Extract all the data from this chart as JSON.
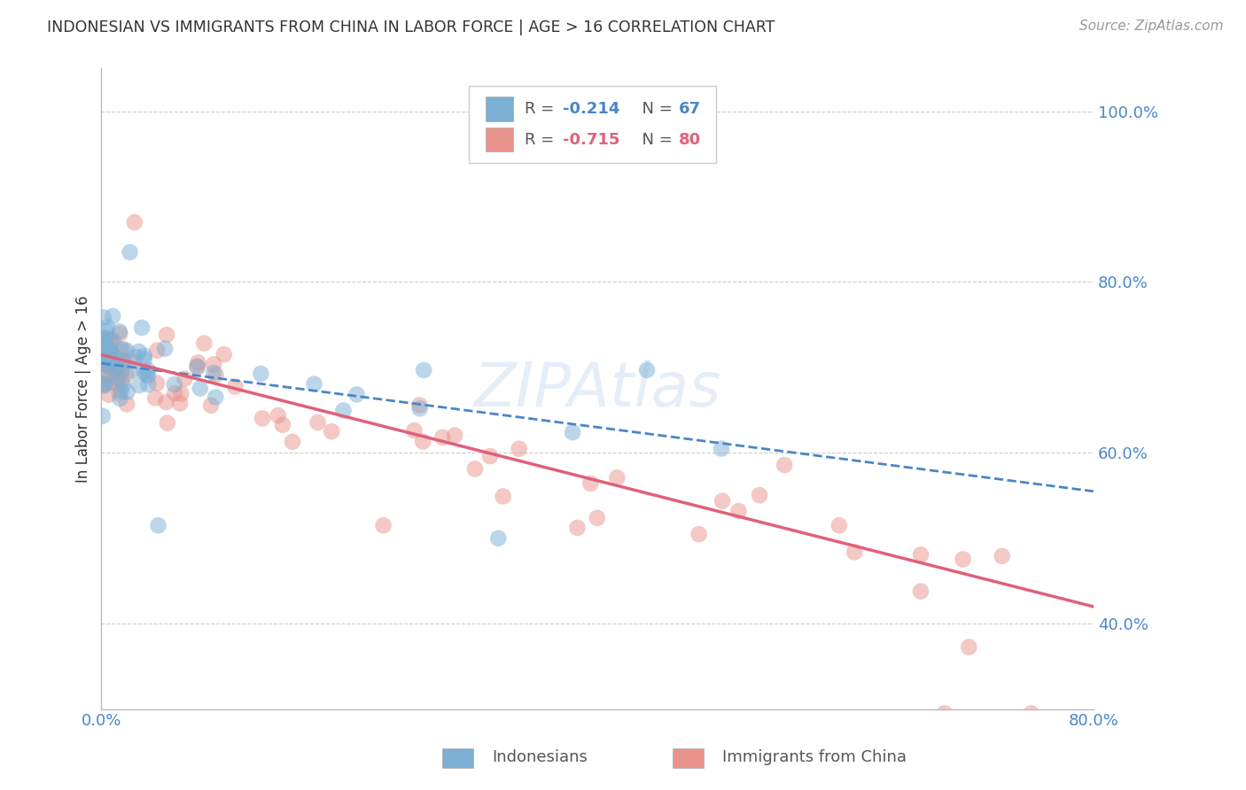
{
  "title": "INDONESIAN VS IMMIGRANTS FROM CHINA IN LABOR FORCE | AGE > 16 CORRELATION CHART",
  "source": "Source: ZipAtlas.com",
  "ylabel": "In Labor Force | Age > 16",
  "xlim": [
    0.0,
    0.8
  ],
  "ylim": [
    0.3,
    1.05
  ],
  "yticks": [
    0.4,
    0.6,
    0.8,
    1.0
  ],
  "ytick_labels": [
    "40.0%",
    "60.0%",
    "80.0%",
    "100.0%"
  ],
  "xticks": [
    0.0,
    0.1,
    0.2,
    0.3,
    0.4,
    0.5,
    0.6,
    0.7,
    0.8
  ],
  "xtick_labels": [
    "0.0%",
    "",
    "",
    "",
    "",
    "",
    "",
    "",
    "80.0%"
  ],
  "blue_color": "#7bafd4",
  "pink_color": "#e8928c",
  "blue_line_color": "#4a86c8",
  "pink_line_color": "#e0607a",
  "R_blue": -0.214,
  "N_blue": 67,
  "R_pink": -0.715,
  "N_pink": 80,
  "legend_label_blue": "Indonesians",
  "legend_label_pink": "Immigrants from China",
  "background_color": "#ffffff",
  "grid_color": "#cccccc",
  "title_color": "#333333",
  "axis_color": "#4a86c8",
  "blue_line_start_y": 0.705,
  "blue_line_end_y": 0.555,
  "pink_line_start_y": 0.715,
  "pink_line_end_y": 0.42
}
